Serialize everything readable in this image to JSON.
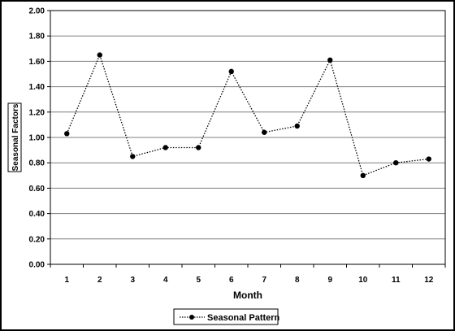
{
  "chart_data": {
    "type": "line",
    "categories": [
      "1",
      "2",
      "3",
      "4",
      "5",
      "6",
      "7",
      "8",
      "9",
      "10",
      "11",
      "12"
    ],
    "series": [
      {
        "name": "Seasonal Pattern",
        "values": [
          1.03,
          1.65,
          0.85,
          0.92,
          0.92,
          1.52,
          1.04,
          1.09,
          1.61,
          0.7,
          0.8,
          0.83
        ],
        "color": "#000000",
        "line_style": "dotted",
        "marker": "circle"
      }
    ],
    "xlabel": "Month",
    "ylabel": "Seasonal Factors",
    "ylim": [
      0,
      2
    ],
    "yticks": [
      "0.00",
      "0.20",
      "0.40",
      "0.60",
      "0.80",
      "1.00",
      "1.20",
      "1.40",
      "1.60",
      "1.80",
      "2.00"
    ],
    "grid": "horizontal",
    "legend_position": "bottom-left"
  }
}
